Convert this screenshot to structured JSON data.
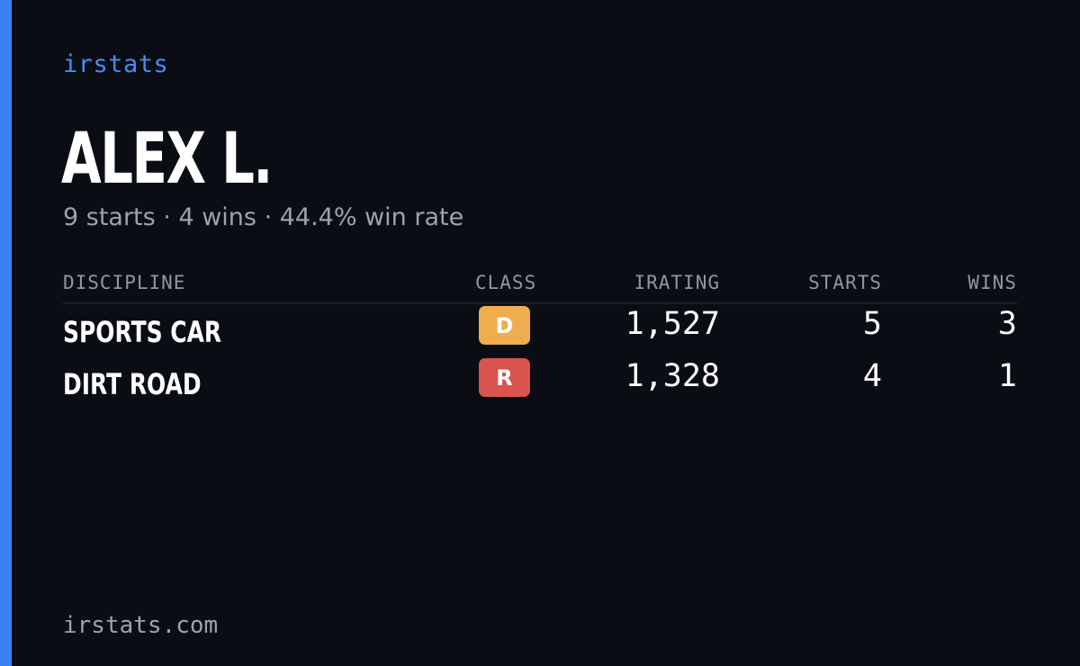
{
  "brand": "irstats",
  "driver": {
    "name": "ALEX L.",
    "summary": "9 starts · 4 wins · 44.4% win rate"
  },
  "table": {
    "headers": {
      "discipline": "DISCIPLINE",
      "class": "CLASS",
      "irating": "IRATING",
      "starts": "STARTS",
      "wins": "WINS"
    },
    "rows": [
      {
        "discipline": "SPORTS CAR",
        "class": "D",
        "class_color": "#f0ad4e",
        "irating": "1,527",
        "starts": "5",
        "wins": "3"
      },
      {
        "discipline": "DIRT ROAD",
        "class": "R",
        "class_color": "#d9534f",
        "irating": "1,328",
        "starts": "4",
        "wins": "1"
      }
    ]
  },
  "footer": "irstats.com",
  "colors": {
    "background": "#0a0d14",
    "accent": "#3b82f6"
  }
}
